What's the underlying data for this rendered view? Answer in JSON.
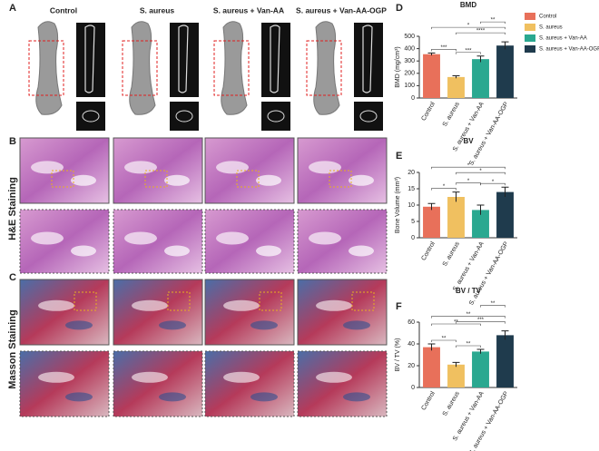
{
  "figure": {
    "panels": [
      "A",
      "B",
      "C",
      "D",
      "E",
      "F"
    ],
    "columns": [
      "Control",
      "S. aureus",
      "S. aureus + Van-AA",
      "S. aureus + Van-AA-OGP"
    ],
    "rows": [
      "H&E Staining",
      "Masson Staining"
    ]
  },
  "chart_data": [
    {
      "type": "bar",
      "title": "BMD",
      "y_label": "BMD (mg/cm³)",
      "categories": [
        "Control",
        "S. aureus",
        "S. aureus + Van-AA",
        "S. aureus + Van-AA-OGP"
      ],
      "values": [
        355,
        170,
        315,
        425
      ],
      "errors": [
        10,
        10,
        25,
        30
      ],
      "colors": [
        "#e8705a",
        "#f0c060",
        "#2aa890",
        "#1f3b4d"
      ],
      "ylim": [
        0,
        500
      ],
      "yticks": [
        0,
        100,
        200,
        300,
        400,
        500
      ],
      "significance": [
        "***",
        "***",
        "****",
        "*",
        "**"
      ],
      "legend": true
    },
    {
      "type": "bar",
      "title": "BV",
      "y_label": "Bone Volume (mm³)",
      "categories": [
        "Control",
        "S. aureus",
        "S. aureus + Van-AA",
        "S. aureus + Van-AA-OGP"
      ],
      "values": [
        9.5,
        12.5,
        8.5,
        14
      ],
      "errors": [
        1,
        1.5,
        1.5,
        1.5
      ],
      "colors": [
        "#e8705a",
        "#f0c060",
        "#2aa890",
        "#1f3b4d"
      ],
      "ylim": [
        0,
        20
      ],
      "yticks": [
        0,
        5,
        10,
        15,
        20
      ],
      "significance": [
        "*",
        "*",
        "*",
        "*",
        "*"
      ]
    },
    {
      "type": "bar",
      "title": "BV / TV",
      "y_label": "BV / TV (%)",
      "categories": [
        "Control",
        "S. aureus",
        "S. aureus + Van-AA",
        "S. aureus + Van-AA-OGP"
      ],
      "values": [
        37,
        21,
        33,
        48
      ],
      "errors": [
        3,
        2,
        2,
        4
      ],
      "colors": [
        "#e8705a",
        "#f0c060",
        "#2aa890",
        "#1f3b4d"
      ],
      "ylim": [
        0,
        60
      ],
      "yticks": [
        0,
        20,
        40,
        60
      ],
      "significance": [
        "**",
        "**",
        "***",
        "**",
        "**",
        "**"
      ]
    }
  ]
}
